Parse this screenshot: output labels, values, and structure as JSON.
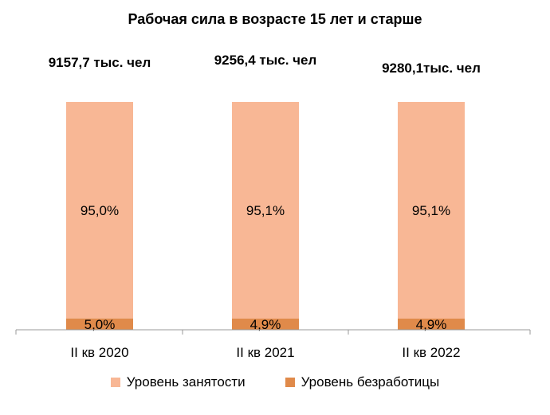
{
  "chart_data": {
    "type": "bar",
    "stacked": true,
    "title": "Рабочая сила в возрасте 15 лет и старше",
    "categories": [
      "II кв 2020",
      "II кв 2021",
      "II кв 2022"
    ],
    "totals": [
      "9157,7 тыс. чел",
      "9256,4 тыс. чел",
      "9280,1тыс. чел"
    ],
    "series": [
      {
        "name": "Уровень безработицы",
        "color": "#E08A4A",
        "values": [
          5.0,
          4.9,
          4.9
        ],
        "labels": [
          "5,0%",
          "4,9%",
          "4,9%"
        ]
      },
      {
        "name": "Уровень занятости",
        "color": "#F8B795",
        "values": [
          95.0,
          95.1,
          95.1
        ],
        "labels": [
          "95,0%",
          "95,1%",
          "95,1%"
        ]
      }
    ],
    "ylim": [
      0,
      100
    ],
    "grid": false,
    "legend": "bottom"
  }
}
